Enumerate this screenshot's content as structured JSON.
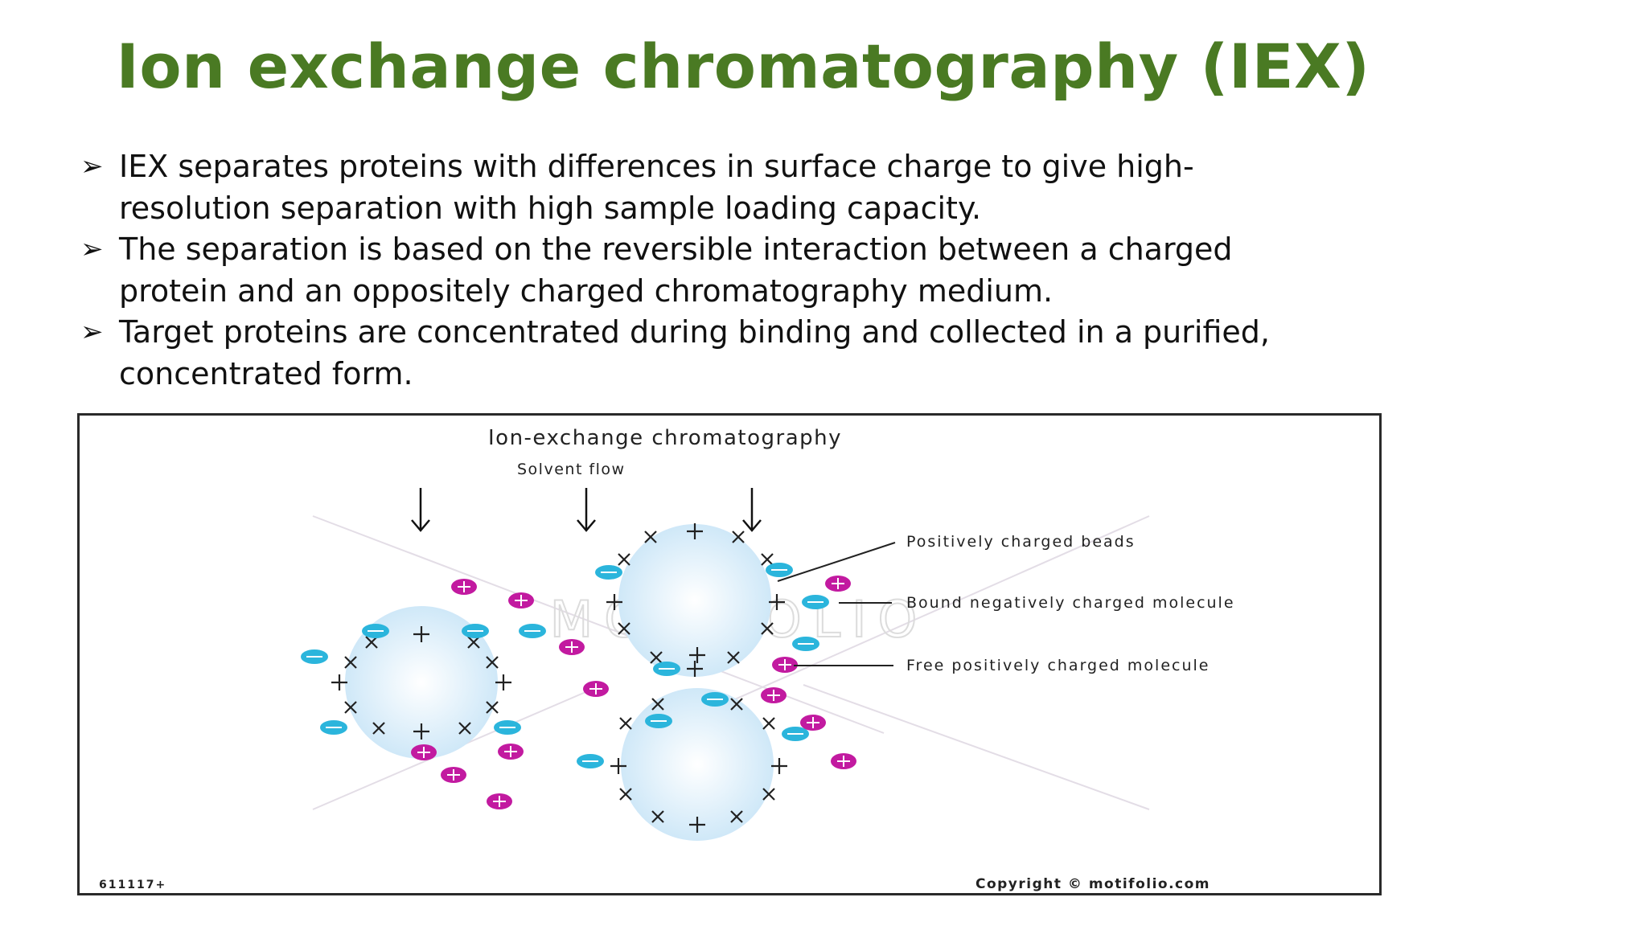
{
  "slide": {
    "title": "Ion exchange chromatography (IEX)",
    "bullets": [
      "IEX separates proteins with differences in surface charge to give high-resolution separation with high sample loading capacity.",
      "The separation is based on the reversible interaction between a charged protein and an oppositely charged chromatography medium.",
      "Target proteins are concentrated during binding and collected in a purified, concentrated form."
    ],
    "bullet_icon": "arrowhead-bullet-icon"
  },
  "diagram": {
    "title": "Ion-exchange chromatography",
    "flow_label": "Solvent flow",
    "labels": {
      "beads": "Positively charged beads",
      "bound": "Bound negatively charged molecule",
      "free": "Free positively charged molecule"
    },
    "watermark": "MOTIFOLIO",
    "id_code": "611117+",
    "copyright": "Copyright © motifolio.com",
    "colors": {
      "bead_fill": "#dff0fb",
      "negative_molecule": "#2bb5dc",
      "positive_molecule": "#c21aa0"
    }
  }
}
